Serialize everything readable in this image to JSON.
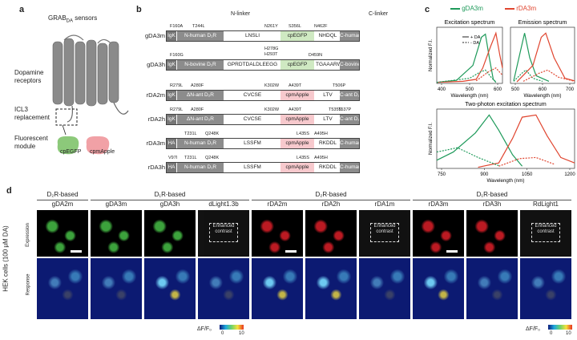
{
  "panel_labels": {
    "a": "a",
    "b": "b",
    "c": "c",
    "d": "d"
  },
  "panel_a": {
    "title_prefix": "GRAB",
    "title_sub": "DA",
    "title_suffix": " sensors",
    "receptor_label": "Dopamine\nreceptors",
    "icl3_label": "ICL3\nreplacement",
    "module_label": "Fluorescent\nmodule",
    "cpEGFP": "cpEGFP",
    "cpmApple": "cpmApple",
    "colors": {
      "green": "#8cc97a",
      "red": "#f1a1a6",
      "gray": "#8a8a8a"
    }
  },
  "panel_b": {
    "header_nlinker": "N-linker",
    "header_clinker": "C-linker",
    "rows": [
      {
        "name": "gDA3m",
        "tag": "IgK",
        "n_term": "N-human D₁R",
        "nlinker": "LNSLI",
        "module": "cpEGFP",
        "clinker": "NHDQL",
        "c_term": "C-human D₁R",
        "mut_top": [
          "F160A",
          "T244L",
          "N261Y",
          "S356L",
          "N462F"
        ],
        "mut_bottom": []
      },
      {
        "name": "gDA3h",
        "tag": "IgK",
        "n_term": "N-bovine D₁R",
        "nlinker": "GPRDTDALDLEEGG",
        "module": "cpEGFP",
        "clinker": "TGAAARW",
        "c_term": "C-bovine D₁R",
        "mut_top": [
          "F160G",
          "H278G",
          "H293T",
          "D459N"
        ],
        "mut_bottom": []
      },
      {
        "name": "rDA2m",
        "tag": "IgK",
        "n_term": "ΔN-ant D₂R",
        "nlinker": "CVCSE",
        "module": "cpmApple",
        "clinker": "LTV",
        "c_term": "C-ant D₂R",
        "mut_top": [
          "R279L",
          "A280F",
          "K302W",
          "A439T",
          "T506P"
        ],
        "mut_bottom": []
      },
      {
        "name": "rDA2h",
        "tag": "IgK",
        "n_term": "ΔN-ant D₂R",
        "nlinker": "CVCSE",
        "module": "cpmApple",
        "clinker": "LTV",
        "c_term": "C-ant D₂R",
        "mut_top": [
          "R279L",
          "A280F",
          "K302W",
          "A439T",
          "T535S",
          "T537P"
        ],
        "mut_bottom": []
      },
      {
        "name": "rDA3m",
        "tag": "HA",
        "n_term": "N-human D₁R",
        "nlinker": "LSSFM",
        "module": "cpmApple",
        "clinker": "RKDDL",
        "c_term": "C-human D₁R",
        "mut_top": [
          "T231L",
          "Q248K",
          "L435S",
          "A495H"
        ],
        "mut_bottom": []
      },
      {
        "name": "rDA3h",
        "tag": "HA",
        "n_term": "N-human D₁R",
        "nlinker": "LSSFM",
        "module": "cpmApple",
        "clinker": "RKDDL",
        "c_term": "C-human D₁R",
        "mut_top": [
          "V97I",
          "T231L",
          "Q248K",
          "L435S",
          "A495H"
        ],
        "mut_bottom": []
      }
    ]
  },
  "panel_c": {
    "legend": {
      "green": "gDA3m",
      "red": "rDA3m",
      "plus_da": "+ DA",
      "minus_da": "- DA"
    },
    "chart_data": [
      {
        "type": "line",
        "title": "Excitation spectrum",
        "xlabel": "Wavelength (nm)",
        "ylabel": "Normalized F.I.",
        "x_ticks": [
          "400",
          "500",
          "600"
        ],
        "series": [
          {
            "name": "gDA3m",
            "values": []
          },
          {
            "name": "rDA3m",
            "values": []
          }
        ]
      },
      {
        "type": "line",
        "title": "Emission spectrum",
        "xlabel": "Wavelength (nm)",
        "ylabel": "",
        "x_ticks": [
          "500",
          "600",
          "700"
        ],
        "series": [
          {
            "name": "gDA3m",
            "values": []
          },
          {
            "name": "rDA3m",
            "values": []
          }
        ]
      },
      {
        "type": "line",
        "title": "Two-photon excitation spectrum",
        "xlabel": "Wavelength (nm)",
        "ylabel": "Normalized F.I.",
        "x_ticks": [
          "750",
          "900",
          "1050",
          "1200"
        ],
        "series": [
          {
            "name": "gDA3m",
            "values": []
          },
          {
            "name": "rDA3m",
            "values": []
          }
        ]
      }
    ]
  },
  "panel_d": {
    "y_group": "HEK cells (100 μM DA)",
    "row_labels": [
      "Expression",
      "Response"
    ],
    "groups": [
      {
        "label": "D₂R-based"
      },
      {
        "label": "D₁R-based"
      },
      {
        "label": "D₂R-based"
      },
      {
        "label": "D₁R-based"
      }
    ],
    "columns": [
      "gDA2m",
      "gDA3m",
      "gDA3h",
      "dLight1.3b",
      "rDA2m",
      "rDA2h",
      "rDA1m",
      "rDA3m",
      "rDA3h",
      "RdLight1"
    ],
    "enhanced": "Enhanced\ncontrast",
    "scale_label": "ΔF/F₀",
    "scale_min": "0",
    "scale_max": "10"
  }
}
